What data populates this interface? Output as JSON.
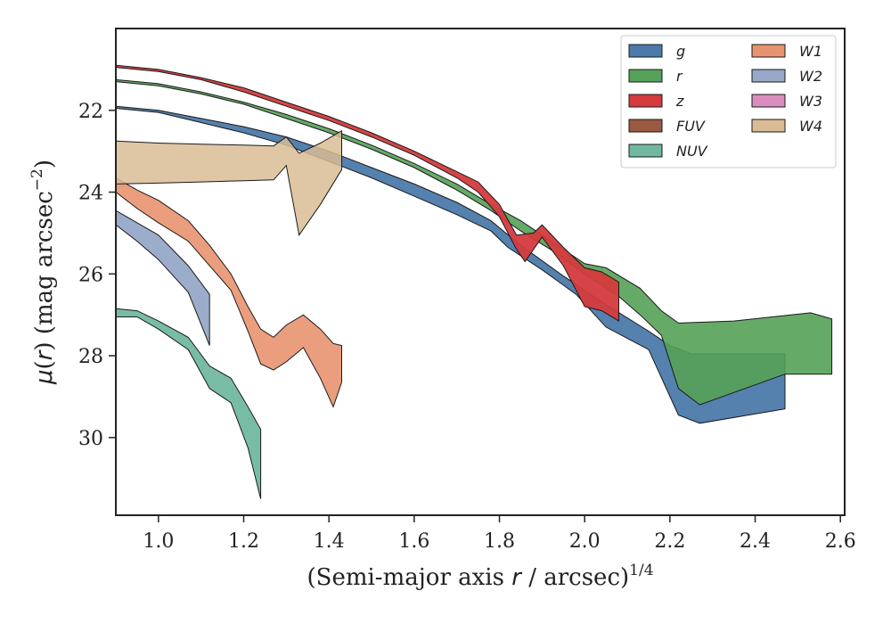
{
  "chart_data": {
    "type": "area",
    "xlabel_html": "(Semi-major axis r / arcsec)",
    "xlabel_parts": {
      "pre": "(Semi-major axis ",
      "var": "r",
      "post": " / arcsec)",
      "sup": "1/4"
    },
    "ylabel_parts": {
      "pre": "μ(",
      "var": "r",
      "post": ") (mag arcsec",
      "sup": "−2",
      "end": ")"
    },
    "xlim": [
      0.9,
      2.61
    ],
    "ylim": [
      31.9,
      20.0
    ],
    "y_inverted": true,
    "xticks": [
      1.0,
      1.2,
      1.4,
      1.6,
      1.8,
      2.0,
      2.2,
      2.4,
      2.6
    ],
    "xtick_labels": [
      "1.0",
      "1.2",
      "1.4",
      "1.6",
      "1.8",
      "2.0",
      "2.2",
      "2.4",
      "2.6"
    ],
    "yticks": [
      22,
      24,
      26,
      28,
      30
    ],
    "ytick_labels": [
      "22",
      "24",
      "26",
      "28",
      "30"
    ],
    "legend": {
      "position": "top-right",
      "columns": 2
    },
    "series": [
      {
        "name": "g",
        "color": "#4c7aab",
        "opacity": 0.95,
        "upper": [
          [
            0.9,
            21.9
          ],
          [
            1.0,
            22.0
          ],
          [
            1.1,
            22.2
          ],
          [
            1.2,
            22.4
          ],
          [
            1.3,
            22.65
          ],
          [
            1.4,
            23.0
          ],
          [
            1.5,
            23.4
          ],
          [
            1.6,
            23.8
          ],
          [
            1.7,
            24.25
          ],
          [
            1.78,
            24.7
          ],
          [
            1.85,
            25.3
          ],
          [
            1.95,
            26.05
          ],
          [
            2.05,
            26.75
          ],
          [
            2.15,
            27.4
          ],
          [
            2.2,
            27.75
          ],
          [
            2.25,
            27.95
          ],
          [
            2.47,
            27.95
          ]
        ],
        "lower": [
          [
            0.9,
            21.95
          ],
          [
            1.0,
            22.05
          ],
          [
            1.1,
            22.3
          ],
          [
            1.2,
            22.55
          ],
          [
            1.3,
            22.85
          ],
          [
            1.4,
            23.25
          ],
          [
            1.5,
            23.65
          ],
          [
            1.6,
            24.1
          ],
          [
            1.7,
            24.55
          ],
          [
            1.78,
            24.95
          ],
          [
            1.82,
            25.35
          ],
          [
            1.9,
            25.9
          ],
          [
            1.98,
            26.5
          ],
          [
            2.05,
            27.3
          ],
          [
            2.15,
            27.85
          ],
          [
            2.22,
            29.45
          ],
          [
            2.27,
            29.65
          ],
          [
            2.47,
            29.3
          ]
        ]
      },
      {
        "name": "r",
        "color": "#55a157",
        "opacity": 0.9,
        "upper": [
          [
            0.9,
            21.25
          ],
          [
            1.0,
            21.35
          ],
          [
            1.1,
            21.55
          ],
          [
            1.2,
            21.8
          ],
          [
            1.3,
            22.1
          ],
          [
            1.4,
            22.45
          ],
          [
            1.5,
            22.85
          ],
          [
            1.6,
            23.3
          ],
          [
            1.7,
            23.8
          ],
          [
            1.78,
            24.3
          ],
          [
            1.85,
            24.7
          ],
          [
            1.9,
            25.05
          ],
          [
            2.0,
            25.75
          ],
          [
            2.05,
            25.85
          ],
          [
            2.13,
            26.35
          ],
          [
            2.18,
            26.9
          ],
          [
            2.22,
            27.2
          ],
          [
            2.35,
            27.15
          ],
          [
            2.53,
            26.95
          ],
          [
            2.58,
            27.1
          ]
        ],
        "lower": [
          [
            0.9,
            21.3
          ],
          [
            1.0,
            21.4
          ],
          [
            1.1,
            21.6
          ],
          [
            1.2,
            21.85
          ],
          [
            1.3,
            22.2
          ],
          [
            1.4,
            22.55
          ],
          [
            1.5,
            22.95
          ],
          [
            1.6,
            23.4
          ],
          [
            1.7,
            23.95
          ],
          [
            1.78,
            24.45
          ],
          [
            1.85,
            24.95
          ],
          [
            1.92,
            25.4
          ],
          [
            2.0,
            26.0
          ],
          [
            2.08,
            26.55
          ],
          [
            2.13,
            27.0
          ],
          [
            2.18,
            27.5
          ],
          [
            2.22,
            28.8
          ],
          [
            2.27,
            29.2
          ],
          [
            2.47,
            28.45
          ],
          [
            2.58,
            28.45
          ]
        ]
      },
      {
        "name": "z",
        "color": "#d33b3d",
        "opacity": 0.95,
        "upper": [
          [
            0.9,
            20.9
          ],
          [
            1.0,
            21.0
          ],
          [
            1.1,
            21.2
          ],
          [
            1.2,
            21.45
          ],
          [
            1.3,
            21.8
          ],
          [
            1.4,
            22.15
          ],
          [
            1.5,
            22.55
          ],
          [
            1.6,
            23.0
          ],
          [
            1.7,
            23.5
          ],
          [
            1.75,
            23.75
          ],
          [
            1.8,
            24.3
          ],
          [
            1.84,
            25.05
          ],
          [
            1.88,
            25.0
          ],
          [
            1.9,
            24.8
          ],
          [
            1.95,
            25.35
          ],
          [
            2.0,
            25.85
          ],
          [
            2.04,
            25.95
          ],
          [
            2.08,
            26.2
          ]
        ],
        "lower": [
          [
            0.9,
            20.95
          ],
          [
            1.0,
            21.05
          ],
          [
            1.1,
            21.25
          ],
          [
            1.2,
            21.55
          ],
          [
            1.3,
            21.9
          ],
          [
            1.4,
            22.25
          ],
          [
            1.5,
            22.65
          ],
          [
            1.6,
            23.1
          ],
          [
            1.7,
            23.65
          ],
          [
            1.75,
            24.0
          ],
          [
            1.8,
            24.6
          ],
          [
            1.84,
            25.4
          ],
          [
            1.86,
            25.7
          ],
          [
            1.9,
            25.1
          ],
          [
            1.95,
            25.8
          ],
          [
            2.0,
            26.8
          ],
          [
            2.04,
            26.9
          ],
          [
            2.08,
            27.15
          ]
        ]
      },
      {
        "name": "FUV",
        "color": "#9a5a42",
        "opacity": 0.95,
        "upper": [],
        "lower": []
      },
      {
        "name": "NUV",
        "color": "#72b8a0",
        "opacity": 0.95,
        "upper": [
          [
            0.9,
            26.85
          ],
          [
            0.95,
            26.9
          ],
          [
            1.0,
            27.15
          ],
          [
            1.07,
            27.55
          ],
          [
            1.12,
            28.25
          ],
          [
            1.17,
            28.55
          ],
          [
            1.21,
            29.25
          ],
          [
            1.24,
            29.8
          ]
        ],
        "lower": [
          [
            0.9,
            27.05
          ],
          [
            0.95,
            27.05
          ],
          [
            1.0,
            27.35
          ],
          [
            1.07,
            27.85
          ],
          [
            1.12,
            28.8
          ],
          [
            1.17,
            29.15
          ],
          [
            1.21,
            30.25
          ],
          [
            1.24,
            31.5
          ]
        ]
      },
      {
        "name": "W1",
        "color": "#e8936f",
        "opacity": 0.9,
        "upper": [
          [
            0.9,
            23.65
          ],
          [
            0.95,
            23.95
          ],
          [
            1.0,
            24.2
          ],
          [
            1.07,
            24.7
          ],
          [
            1.12,
            25.3
          ],
          [
            1.17,
            26.0
          ],
          [
            1.21,
            26.8
          ],
          [
            1.24,
            27.35
          ],
          [
            1.27,
            27.55
          ],
          [
            1.3,
            27.25
          ],
          [
            1.34,
            27.0
          ],
          [
            1.38,
            27.35
          ],
          [
            1.41,
            27.7
          ],
          [
            1.43,
            27.75
          ]
        ],
        "lower": [
          [
            0.9,
            24.0
          ],
          [
            0.95,
            24.4
          ],
          [
            1.0,
            24.75
          ],
          [
            1.07,
            25.2
          ],
          [
            1.12,
            25.8
          ],
          [
            1.17,
            26.4
          ],
          [
            1.21,
            27.4
          ],
          [
            1.24,
            28.2
          ],
          [
            1.27,
            28.35
          ],
          [
            1.3,
            28.15
          ],
          [
            1.34,
            27.8
          ],
          [
            1.38,
            28.55
          ],
          [
            1.41,
            29.25
          ],
          [
            1.43,
            28.65
          ]
        ]
      },
      {
        "name": "W2",
        "color": "#97a8c8",
        "opacity": 0.95,
        "upper": [
          [
            0.9,
            24.45
          ],
          [
            0.95,
            24.75
          ],
          [
            1.0,
            25.05
          ],
          [
            1.07,
            25.8
          ],
          [
            1.12,
            26.5
          ]
        ],
        "lower": [
          [
            0.9,
            24.8
          ],
          [
            0.95,
            25.2
          ],
          [
            1.0,
            25.65
          ],
          [
            1.07,
            26.45
          ],
          [
            1.12,
            27.75
          ]
        ]
      },
      {
        "name": "W3",
        "color": "#da8ec0",
        "opacity": 0.95,
        "upper": [],
        "lower": []
      },
      {
        "name": "W4",
        "color": "#d9bc95",
        "opacity": 0.85,
        "upper": [
          [
            0.9,
            22.75
          ],
          [
            1.0,
            22.8
          ],
          [
            1.1,
            22.83
          ],
          [
            1.2,
            22.85
          ],
          [
            1.27,
            22.87
          ],
          [
            1.3,
            22.65
          ],
          [
            1.33,
            23.05
          ],
          [
            1.38,
            22.8
          ],
          [
            1.43,
            22.5
          ]
        ],
        "lower": [
          [
            0.9,
            23.8
          ],
          [
            1.0,
            23.78
          ],
          [
            1.1,
            23.75
          ],
          [
            1.2,
            23.72
          ],
          [
            1.27,
            23.7
          ],
          [
            1.3,
            23.35
          ],
          [
            1.33,
            25.05
          ],
          [
            1.38,
            24.3
          ],
          [
            1.43,
            23.45
          ]
        ]
      }
    ]
  }
}
